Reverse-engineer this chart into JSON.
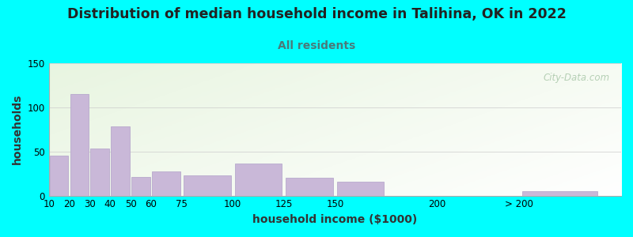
{
  "title": "Distribution of median household income in Talihina, OK in 2022",
  "subtitle": "All residents",
  "xlabel": "household income ($1000)",
  "ylabel": "households",
  "bar_labels": [
    "10",
    "20",
    "30",
    "40",
    "50",
    "60",
    "75",
    "100",
    "125",
    "150",
    "200",
    "> 200"
  ],
  "bar_left_edges": [
    10,
    20,
    30,
    40,
    50,
    60,
    75,
    100,
    125,
    150,
    200,
    240
  ],
  "bar_widths": [
    10,
    10,
    10,
    10,
    10,
    15,
    25,
    25,
    25,
    25,
    40,
    40
  ],
  "bar_values": [
    45,
    115,
    53,
    78,
    21,
    27,
    23,
    36,
    20,
    16,
    0,
    5
  ],
  "bar_color": "#c9b8d8",
  "bar_edge_color": "#b0a0c8",
  "ylim": [
    0,
    150
  ],
  "yticks": [
    0,
    50,
    100,
    150
  ],
  "xlim": [
    10,
    290
  ],
  "xtick_positions": [
    10,
    20,
    30,
    40,
    50,
    60,
    75,
    100,
    125,
    150,
    200,
    240
  ],
  "xtick_labels": [
    "10",
    "20",
    "30",
    "40",
    "50",
    "60",
    "75",
    "100",
    "125",
    "150",
    "200",
    "> 200"
  ],
  "bg_color": "#00ffff",
  "title_color": "#222222",
  "subtitle_color": "#4a7a7a",
  "axis_label_color": "#333333",
  "title_fontsize": 12.5,
  "subtitle_fontsize": 10,
  "axis_label_fontsize": 10,
  "tick_fontsize": 8.5,
  "watermark_text": "City-Data.com",
  "watermark_color": "#aac8aa",
  "plot_bg_green": [
    0.91,
    0.96,
    0.88
  ],
  "plot_bg_white": [
    1.0,
    1.0,
    1.0
  ]
}
